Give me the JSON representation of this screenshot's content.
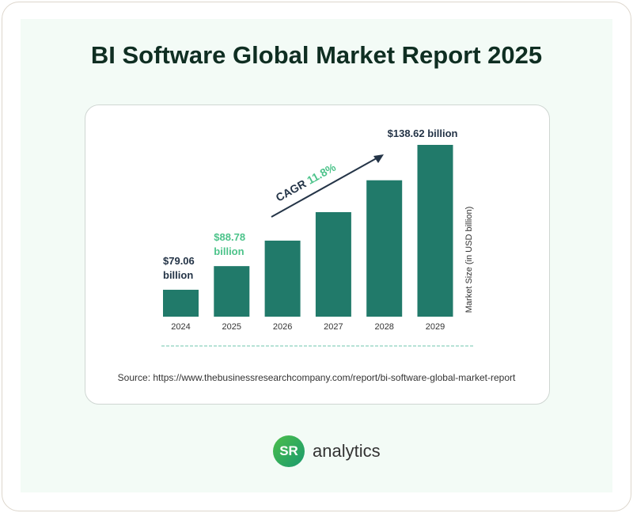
{
  "title": "BI Software Global Market Report 2025",
  "source": "Source: https://www.thebusinessresearchcompany.com/report/bi-software-global-market-report",
  "logo": {
    "mark": "SR",
    "text": "analytics"
  },
  "colors": {
    "bar": "#217a6a",
    "dark": "#243447",
    "accent": "#4cc38a"
  },
  "chart_data": {
    "type": "bar",
    "title": "BI Software Global Market Report 2025",
    "categories": [
      "2024",
      "2025",
      "2026",
      "2027",
      "2028",
      "2029"
    ],
    "values": [
      79.06,
      88.78,
      99.26,
      110.97,
      124.07,
      138.62
    ],
    "ylabel": "Market Size (in USD billion)",
    "xlabel": "",
    "labels": [
      {
        "index": 0,
        "line1": "$79.06",
        "line2": "billion",
        "style": "dark"
      },
      {
        "index": 1,
        "line1": "$88.78",
        "line2": "billion",
        "style": "accent"
      },
      {
        "index": 5,
        "line1": "$138.62 billion",
        "line2": "",
        "style": "dark"
      }
    ],
    "annotation": {
      "prefix": "CAGR",
      "value": "11.8%"
    },
    "grid": false
  }
}
